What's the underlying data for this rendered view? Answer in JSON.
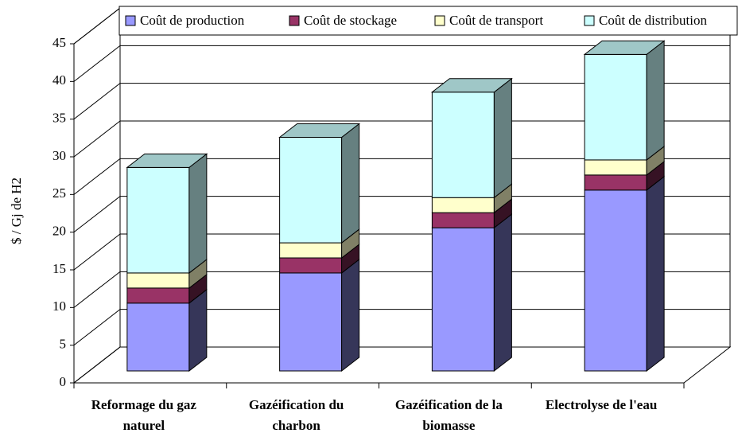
{
  "chart_data": {
    "type": "bar",
    "stacked": true,
    "three_d": true,
    "y_label": "$ / Gj de H2",
    "categories": [
      "Reformage du gaz naturel",
      "Gazéification du charbon",
      "Gazéification de la biomasse",
      "Electrolyse de l'eau"
    ],
    "series": [
      {
        "name": "Coût de production",
        "color": "#9999ff",
        "values": [
          9,
          13,
          19,
          24
        ]
      },
      {
        "name": "Coût de stockage",
        "color": "#993366",
        "values": [
          2,
          2,
          2,
          2
        ]
      },
      {
        "name": "Coût de transport",
        "color": "#ffffcc",
        "values": [
          2,
          2,
          2,
          2
        ]
      },
      {
        "name": "Coût de distribution",
        "color": "#ccffff",
        "values": [
          14,
          14,
          14,
          14
        ]
      }
    ],
    "ylim": [
      0,
      45
    ],
    "yticks": [
      0,
      5,
      10,
      15,
      20,
      25,
      30,
      35,
      40,
      45
    ],
    "grid": true,
    "legend": "top"
  }
}
